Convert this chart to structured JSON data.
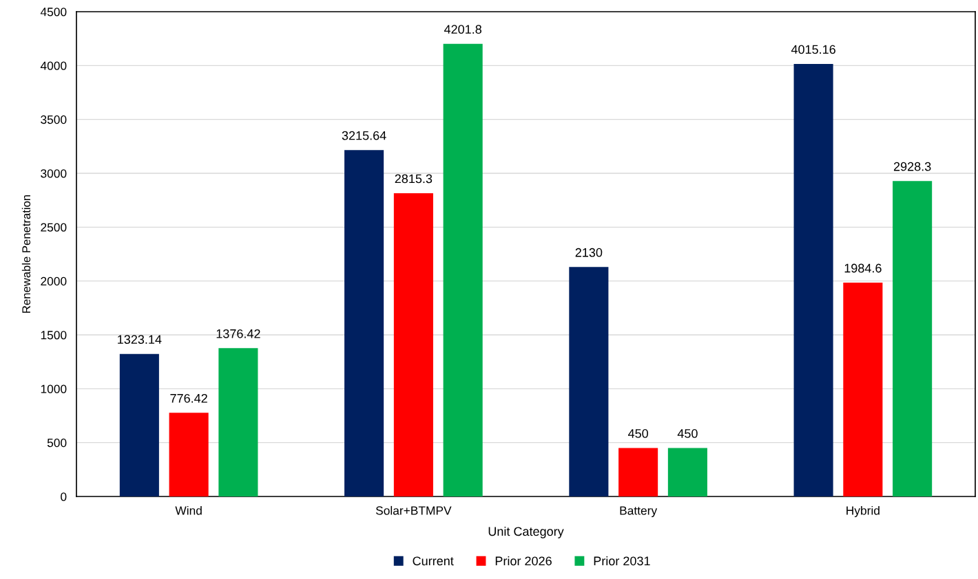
{
  "chart_data": {
    "type": "bar",
    "xlabel": "Unit Category",
    "ylabel": "Renewable Penetration",
    "categories": [
      "Wind",
      "Solar+BTMPV",
      "Battery",
      "Hybrid"
    ],
    "series": [
      {
        "name": "Current",
        "color": "#002060",
        "values": [
          1323.14,
          3215.64,
          2130,
          4015.16
        ]
      },
      {
        "name": "Prior 2026",
        "color": "#ff0000",
        "values": [
          776.42,
          2815.3,
          450,
          1984.6
        ]
      },
      {
        "name": "Prior 2031",
        "color": "#00b050",
        "values": [
          1376.42,
          4201.8,
          450,
          2928.3
        ]
      }
    ],
    "ylim": [
      0,
      4500
    ],
    "yticks": [
      0,
      500,
      1000,
      1500,
      2000,
      2500,
      3000,
      3500,
      4000,
      4500
    ],
    "grid": "y",
    "legend": "bottom",
    "data_labels": true
  }
}
